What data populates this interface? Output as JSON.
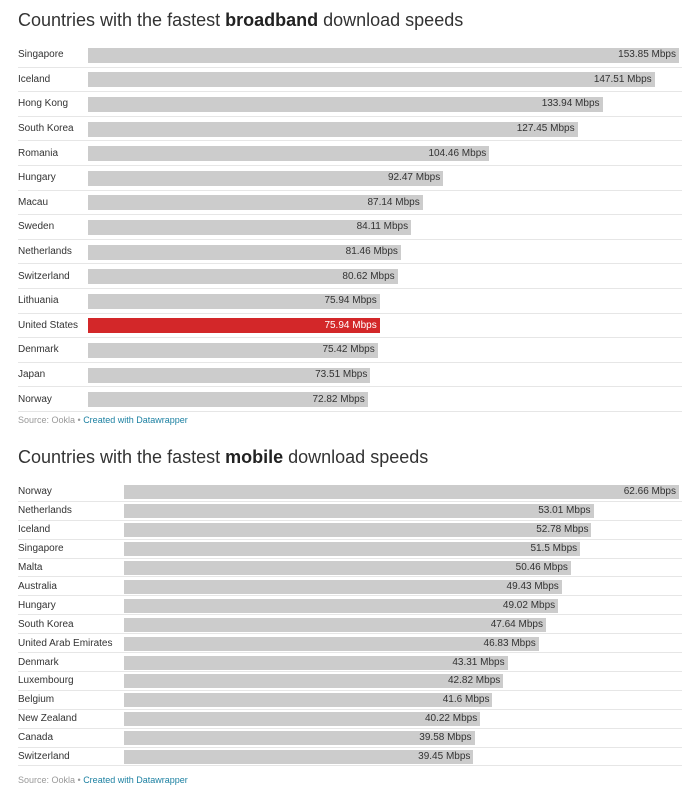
{
  "highlight_color": "#d32729",
  "bar_color": "#cccccc",
  "link_color": "#1d81a2",
  "charts": {
    "broadband": {
      "title_prefix": "Countries with the fastest ",
      "title_bold": "broadband",
      "title_suffix": " download speeds",
      "source_label": "Source: Ookla",
      "bullet": " • ",
      "credit": "Created with Datawrapper"
    },
    "mobile": {
      "title_prefix": "Countries with the fastest ",
      "title_bold": "mobile",
      "title_suffix": " download speeds",
      "source_label": "Source: Ookla",
      "bullet": " • ",
      "credit": "Created with Datawrapper"
    }
  },
  "chart_data": [
    {
      "type": "bar",
      "orientation": "horizontal",
      "unit": " Mbps",
      "title": "Countries with the fastest broadband download speeds",
      "categories": [
        "Singapore",
        "Iceland",
        "Hong Kong",
        "South Korea",
        "Romania",
        "Hungary",
        "Macau",
        "Sweden",
        "Netherlands",
        "Switzerland",
        "Lithuania",
        "United States",
        "Denmark",
        "Japan",
        "Norway"
      ],
      "values": [
        153.85,
        147.51,
        133.94,
        127.45,
        104.46,
        92.47,
        87.14,
        84.11,
        81.46,
        80.62,
        75.94,
        75.94,
        75.42,
        73.51,
        72.82
      ],
      "highlight": "United States",
      "grid": false
    },
    {
      "type": "bar",
      "orientation": "horizontal",
      "unit": " Mbps",
      "title": "Countries with the fastest mobile download speeds",
      "categories": [
        "Norway",
        "Netherlands",
        "Iceland",
        "Singapore",
        "Malta",
        "Australia",
        "Hungary",
        "South Korea",
        "United Arab Emirates",
        "Denmark",
        "Luxembourg",
        "Belgium",
        "New Zealand",
        "Canada",
        "Switzerland"
      ],
      "values": [
        62.66,
        53.01,
        52.78,
        51.5,
        50.46,
        49.43,
        49.02,
        47.64,
        46.83,
        43.31,
        42.82,
        41.6,
        40.22,
        39.58,
        39.45
      ],
      "highlight": null,
      "grid": false
    }
  ]
}
